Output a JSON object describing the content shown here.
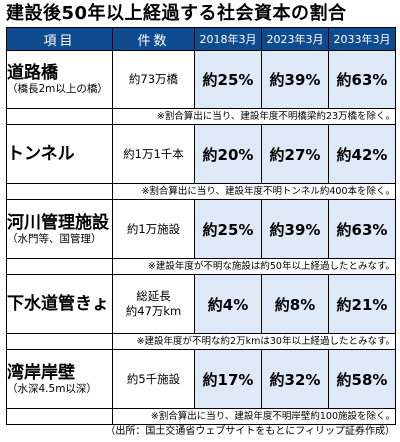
{
  "title": "建設後50年以上経過する社会資本の割合",
  "headers": {
    "item": "項目",
    "count": "件数",
    "years": [
      "2018年3月",
      "2023年3月",
      "2033年3月"
    ]
  },
  "rows": [
    {
      "name": "道路橋",
      "sub": "（橋長2m以上の橋）",
      "count": "約73万橋",
      "values": [
        "約25%",
        "約39%",
        "約63%"
      ],
      "note": "※割合算出に当り、建設年度不明橋梁約23万橋を除く。"
    },
    {
      "name": "トンネル",
      "sub": "",
      "count": "約1万1千本",
      "values": [
        "約20%",
        "約27%",
        "約42%"
      ],
      "note": "※割合算出に当り、建設年度不明トンネル約400本を除く。"
    },
    {
      "name": "河川管理施設",
      "sub": "（水門等、国管理）",
      "count": "約1万施設",
      "values": [
        "約25%",
        "約39%",
        "約63%"
      ],
      "note": "※建設年度が不明な施設は約50年以上経過したとみなす。"
    },
    {
      "name": "下水道管きょ",
      "sub": "",
      "count_lines": [
        "総延長",
        "約47万km"
      ],
      "values": [
        "約4%",
        "約8%",
        "約21%"
      ],
      "note": "※建設年度が不明な約2万kmは30年以上経過したとみなす。"
    },
    {
      "name": "湾岸岸壁",
      "sub": "（水深4.5m以深）",
      "count": "約5千施設",
      "values": [
        "約17%",
        "約32%",
        "約58%"
      ],
      "note": "※割合算出に当り、建設年度不明岸壁約100施設を除く。"
    }
  ],
  "source": "（出所：国土交通省ウェブサイトをもとにフィリップ証券作成）",
  "colors": {
    "header_bg": "#0f4c8f",
    "value_bg": "#dde9f6"
  }
}
